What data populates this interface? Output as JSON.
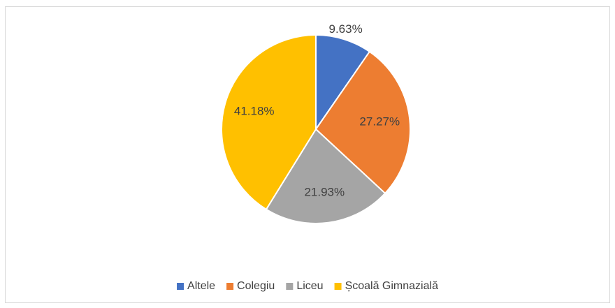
{
  "chart_data": {
    "type": "pie",
    "categories": [
      "Altele",
      "Colegiu",
      "Liceu",
      "Școală Gimnazială"
    ],
    "values": [
      9.63,
      27.27,
      21.93,
      41.18
    ],
    "value_labels": [
      "9.63%",
      "27.27%",
      "21.93%",
      "41.18%"
    ],
    "colors": [
      "#4472c4",
      "#ed7d31",
      "#a5a5a5",
      "#ffc000"
    ],
    "legend": "bottom"
  }
}
